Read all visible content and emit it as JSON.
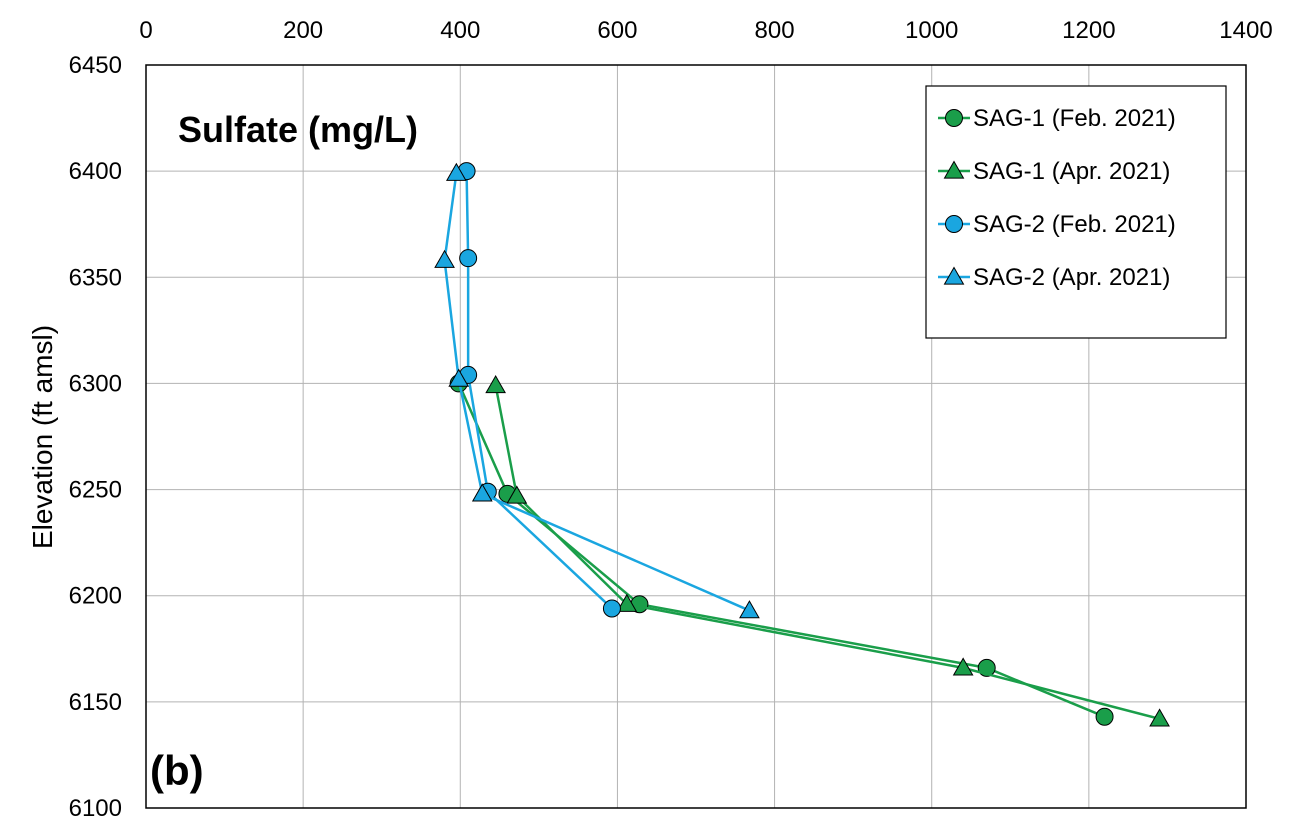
{
  "chart_data": {
    "type": "line",
    "title": "Sulfate (mg/L)",
    "panel_label": "(b)",
    "xlabel": "",
    "ylabel": "Elevation (ft amsl)",
    "xlim": [
      0,
      1400
    ],
    "ylim": [
      6100,
      6450
    ],
    "x_ticks": [
      0,
      200,
      400,
      600,
      800,
      1000,
      1200,
      1400
    ],
    "y_ticks": [
      6100,
      6150,
      6200,
      6250,
      6300,
      6350,
      6400,
      6450
    ],
    "x_axis_position": "top",
    "grid": true,
    "legend_position": "top-right",
    "series": [
      {
        "name": "SAG-1 (Feb. 2021)",
        "color": "#1a9e4a",
        "marker": "circle",
        "points": [
          [
            398,
            6300
          ],
          [
            460,
            6248
          ],
          [
            628,
            6196
          ],
          [
            1070,
            6166
          ],
          [
            1220,
            6143
          ]
        ]
      },
      {
        "name": "SAG-1 (Apr. 2021)",
        "color": "#1a9e4a",
        "marker": "triangle",
        "points": [
          [
            445,
            6299
          ],
          [
            472,
            6247
          ],
          [
            612,
            6196
          ],
          [
            1040,
            6166
          ],
          [
            1290,
            6142
          ]
        ]
      },
      {
        "name": "SAG-2 (Feb. 2021)",
        "color": "#1aa6e0",
        "marker": "circle",
        "points": [
          [
            408,
            6400
          ],
          [
            410,
            6359
          ],
          [
            410,
            6304
          ],
          [
            435,
            6249
          ],
          [
            593,
            6194
          ]
        ]
      },
      {
        "name": "SAG-2 (Apr. 2021)",
        "color": "#1aa6e0",
        "marker": "triangle",
        "points": [
          [
            395,
            6399
          ],
          [
            380,
            6358
          ],
          [
            398,
            6302
          ],
          [
            428,
            6248
          ],
          [
            768,
            6193
          ]
        ]
      }
    ]
  }
}
